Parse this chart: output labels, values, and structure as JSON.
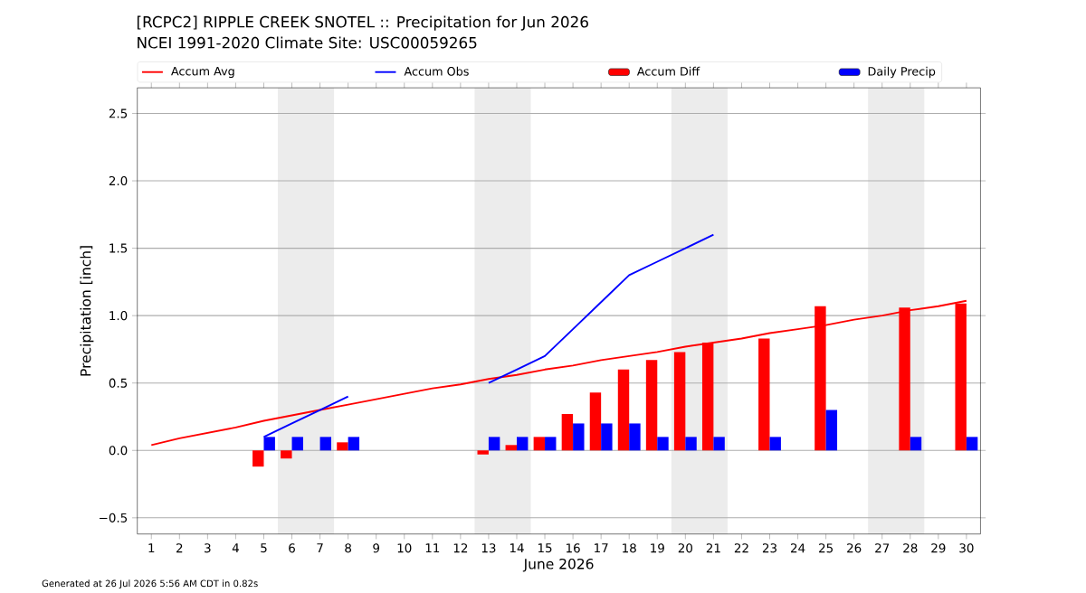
{
  "chart_data": {
    "type": "bar",
    "title": "[RCPC2] RIPPLE CREEK SNOTEL :: Precipitation for Jun 2026",
    "subtitle": "NCEI 1991-2020 Climate Site: USC00059265",
    "xlabel": "June 2026",
    "ylabel": "Precipitation [inch]",
    "x": [
      1,
      2,
      3,
      4,
      5,
      6,
      7,
      8,
      9,
      10,
      11,
      12,
      13,
      14,
      15,
      16,
      17,
      18,
      19,
      20,
      21,
      22,
      23,
      24,
      25,
      26,
      27,
      28,
      29,
      30
    ],
    "series": [
      {
        "name": "Accum Avg",
        "type": "line",
        "color": "#ff0000",
        "values": [
          0.04,
          0.09,
          0.13,
          0.17,
          0.22,
          0.26,
          0.3,
          0.34,
          0.38,
          0.42,
          0.46,
          0.49,
          0.53,
          0.56,
          0.6,
          0.63,
          0.67,
          0.7,
          0.73,
          0.77,
          0.8,
          0.83,
          0.87,
          0.9,
          0.93,
          0.97,
          1.0,
          1.04,
          1.07,
          1.11
        ]
      },
      {
        "name": "Accum Obs",
        "type": "line",
        "color": "#0000ff",
        "values": [
          null,
          null,
          null,
          null,
          0.1,
          0.2,
          0.3,
          0.4,
          null,
          null,
          null,
          null,
          0.5,
          0.6,
          0.7,
          0.9,
          1.1,
          1.3,
          1.4,
          1.5,
          1.6,
          null,
          null,
          null,
          null,
          null,
          null,
          null,
          null,
          null
        ]
      },
      {
        "name": "Accum Diff",
        "color": "#ff0000",
        "values": [
          null,
          null,
          null,
          null,
          -0.12,
          -0.06,
          null,
          0.06,
          null,
          null,
          null,
          null,
          -0.03,
          0.04,
          0.1,
          0.27,
          0.43,
          0.6,
          0.67,
          0.73,
          0.8,
          null,
          0.83,
          null,
          1.07,
          null,
          null,
          1.06,
          null,
          1.09
        ]
      },
      {
        "name": "Daily Precip",
        "color": "#0000ff",
        "values": [
          null,
          null,
          null,
          null,
          0.1,
          0.1,
          0.1,
          0.1,
          null,
          null,
          null,
          null,
          0.1,
          0.1,
          0.1,
          0.2,
          0.2,
          0.2,
          0.1,
          0.1,
          0.1,
          null,
          0.1,
          null,
          0.3,
          null,
          null,
          0.1,
          null,
          0.1
        ]
      }
    ],
    "xlim": [
      0.5,
      30.5
    ],
    "xticks": [
      1,
      2,
      3,
      4,
      5,
      6,
      7,
      8,
      9,
      10,
      11,
      12,
      13,
      14,
      15,
      16,
      17,
      18,
      19,
      20,
      21,
      22,
      23,
      24,
      25,
      26,
      27,
      28,
      29,
      30
    ],
    "ylim": [
      -0.62,
      2.69
    ],
    "yticks": [
      {
        "value": -0.5,
        "label": "−0.5"
      },
      {
        "value": 0,
        "label": "0.0"
      },
      {
        "value": 0.5,
        "label": "0.5"
      },
      {
        "value": 1,
        "label": "1.0"
      },
      {
        "value": 1.5,
        "label": "1.5"
      },
      {
        "value": 2,
        "label": "2.0"
      },
      {
        "value": 2.5,
        "label": "2.5"
      }
    ],
    "grid": "y",
    "legend": "top",
    "bands": [
      {
        "axis": "x",
        "from": 5.5,
        "to": 7.5,
        "color": "#ececec"
      },
      {
        "axis": "x",
        "from": 12.5,
        "to": 14.5,
        "color": "#ececec"
      },
      {
        "axis": "x",
        "from": 19.5,
        "to": 21.5,
        "color": "#ececec"
      },
      {
        "axis": "x",
        "from": 26.5,
        "to": 28.5,
        "color": "#ececec"
      }
    ],
    "annotations": [
      "Generated at 26 Jul 2026 5:56 AM CDT in 0.82s"
    ]
  }
}
